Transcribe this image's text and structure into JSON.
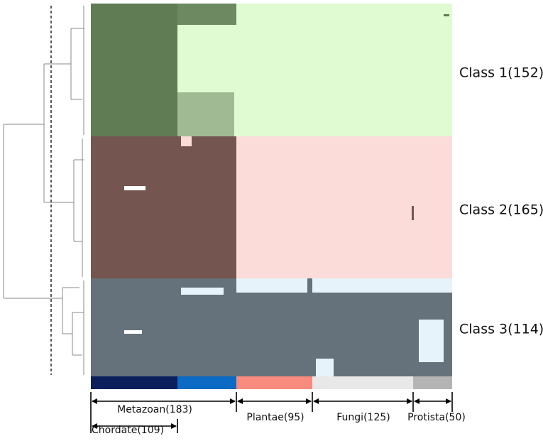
{
  "classes": [
    "Class 1(152)",
    "Class 2(165)",
    "Class 3(114)"
  ],
  "groups": {
    "metazoan": "Metazoan(183)",
    "chordate": "Chordate(109)",
    "plantae": "Plantae(95)",
    "fungi": "Fungi(125)",
    "protista": "Protista(50)"
  }
}
